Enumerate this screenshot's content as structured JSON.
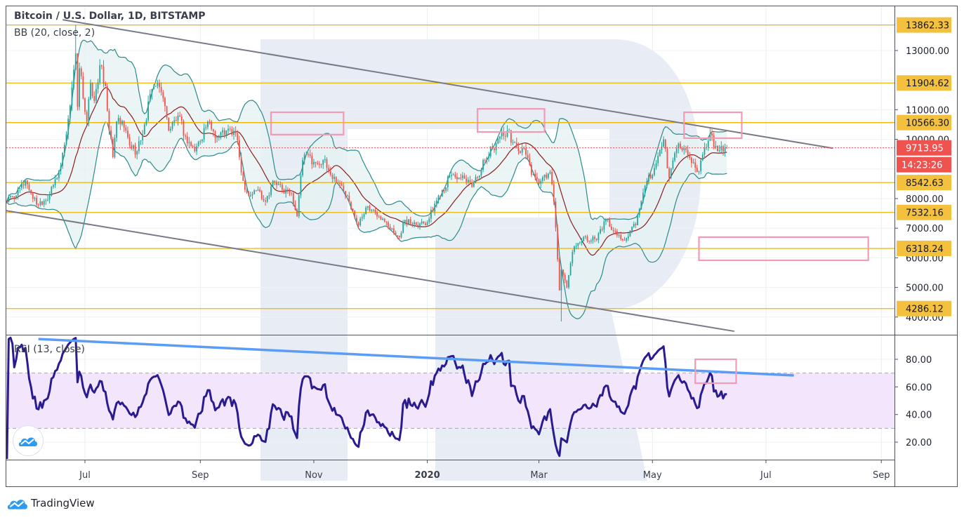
{
  "header": {
    "title": "Bitcoin / U.S. Dollar, 1D, BITSTAMP",
    "indicator": "BB (20, close, 2)"
  },
  "rsi_label": "RSI (13, close)",
  "brand": "TradingView",
  "colors": {
    "up": "#26a69a",
    "down": "#ef5350",
    "bb_line": "#2b8a8a",
    "bb_fill": "#e6f2f2",
    "bb_basis": "#8b1e1e",
    "level": "#f0b400",
    "level_label": "#f4c13f",
    "price_label": "#ef5350",
    "trendline": "#787b86",
    "rsi_line": "#2a1b8f",
    "rsi_band": "#f3e6fc",
    "rsi_trend": "#5b9cf6",
    "box": "#f19bb4",
    "watermark": "#e8edf5"
  },
  "chart_data": {
    "type": "candlestick",
    "title": "Bitcoin / U.S. Dollar, 1D, BITSTAMP",
    "close_keypoints": [
      [
        "2019-05-19",
        7900
      ],
      [
        "2019-05-25",
        8100
      ],
      [
        "2019-05-30",
        8600
      ],
      [
        "2019-06-05",
        7800
      ],
      [
        "2019-06-12",
        8100
      ],
      [
        "2019-06-18",
        9100
      ],
      [
        "2019-06-22",
        10700
      ],
      [
        "2019-06-26",
        12900
      ],
      [
        "2019-06-27",
        11100
      ],
      [
        "2019-06-28",
        12400
      ],
      [
        "2019-07-02",
        10600
      ],
      [
        "2019-07-04",
        11900
      ],
      [
        "2019-07-06",
        11300
      ],
      [
        "2019-07-09",
        12500
      ],
      [
        "2019-07-12",
        11800
      ],
      [
        "2019-07-14",
        10300
      ],
      [
        "2019-07-16",
        9400
      ],
      [
        "2019-07-18",
        10600
      ],
      [
        "2019-07-22",
        10400
      ],
      [
        "2019-07-25",
        9800
      ],
      [
        "2019-07-29",
        9600
      ],
      [
        "2019-08-02",
        10500
      ],
      [
        "2019-08-06",
        11700
      ],
      [
        "2019-08-09",
        11900
      ],
      [
        "2019-08-12",
        11400
      ],
      [
        "2019-08-15",
        10300
      ],
      [
        "2019-08-20",
        10800
      ],
      [
        "2019-08-24",
        10100
      ],
      [
        "2019-08-29",
        9600
      ],
      [
        "2019-09-05",
        10600
      ],
      [
        "2019-09-10",
        10100
      ],
      [
        "2019-09-15",
        10300
      ],
      [
        "2019-09-20",
        10200
      ],
      [
        "2019-09-24",
        8600
      ],
      [
        "2019-09-27",
        8100
      ],
      [
        "2019-10-02",
        8300
      ],
      [
        "2019-10-06",
        7900
      ],
      [
        "2019-10-10",
        8600
      ],
      [
        "2019-10-15",
        8300
      ],
      [
        "2019-10-20",
        8200
      ],
      [
        "2019-10-23",
        7400
      ],
      [
        "2019-10-26",
        9300
      ],
      [
        "2019-10-28",
        9500
      ],
      [
        "2019-11-02",
        9200
      ],
      [
        "2019-11-06",
        9300
      ],
      [
        "2019-11-10",
        8800
      ],
      [
        "2019-11-15",
        8500
      ],
      [
        "2019-11-19",
        8100
      ],
      [
        "2019-11-22",
        7600
      ],
      [
        "2019-11-25",
        7100
      ],
      [
        "2019-11-29",
        7700
      ],
      [
        "2019-12-05",
        7400
      ],
      [
        "2019-12-10",
        7200
      ],
      [
        "2019-12-17",
        6700
      ],
      [
        "2019-12-19",
        7200
      ],
      [
        "2019-12-25",
        7200
      ],
      [
        "2020-01-01",
        7200
      ],
      [
        "2020-01-07",
        8100
      ],
      [
        "2020-01-14",
        8800
      ],
      [
        "2020-01-19",
        8700
      ],
      [
        "2020-01-25",
        8400
      ],
      [
        "2020-02-01",
        9300
      ],
      [
        "2020-02-09",
        10100
      ],
      [
        "2020-02-13",
        10300
      ],
      [
        "2020-02-16",
        9900
      ],
      [
        "2020-02-19",
        9600
      ],
      [
        "2020-02-22",
        9700
      ],
      [
        "2020-02-26",
        8800
      ],
      [
        "2020-03-01",
        8500
      ],
      [
        "2020-03-07",
        8900
      ],
      [
        "2020-03-09",
        7900
      ],
      [
        "2020-03-12",
        4900
      ],
      [
        "2020-03-13",
        5600
      ],
      [
        "2020-03-16",
        5000
      ],
      [
        "2020-03-19",
        6200
      ],
      [
        "2020-03-25",
        6700
      ],
      [
        "2020-04-01",
        6600
      ],
      [
        "2020-04-06",
        7300
      ],
      [
        "2020-04-10",
        6900
      ],
      [
        "2020-04-15",
        6600
      ],
      [
        "2020-04-22",
        7100
      ],
      [
        "2020-04-29",
        8800
      ],
      [
        "2020-05-01",
        8800
      ],
      [
        "2020-05-07",
        10000
      ],
      [
        "2020-05-10",
        8700
      ],
      [
        "2020-05-14",
        9700
      ],
      [
        "2020-05-18",
        9700
      ],
      [
        "2020-05-25",
        8900
      ],
      [
        "2020-06-01",
        10200
      ],
      [
        "2020-06-05",
        9600
      ],
      [
        "2020-06-10",
        9714
      ]
    ],
    "extremes": {
      "high": {
        "date": "2019-06-26",
        "value": 13862.33
      },
      "low": {
        "date": "2020-03-13",
        "value": 3850
      }
    },
    "price_ticks": [
      "13000.00",
      "11000.00",
      "10000.00",
      "8000.00",
      "7000.00",
      "6000.00",
      "5000.00",
      "4000.00"
    ],
    "levels": [
      "13862.33",
      "11904.62",
      "10566.30",
      "8542.63",
      "7532.16",
      "6318.24",
      "4286.12"
    ],
    "last_price": "9713.95",
    "countdown": "14:23:26",
    "time_ticks": [
      {
        "label": "Jul",
        "date": "2019-07-01",
        "bold": false
      },
      {
        "label": "Sep",
        "date": "2019-09-01",
        "bold": false
      },
      {
        "label": "Nov",
        "date": "2019-11-01",
        "bold": false
      },
      {
        "label": "2020",
        "date": "2020-01-01",
        "bold": true
      },
      {
        "label": "Mar",
        "date": "2020-03-01",
        "bold": false
      },
      {
        "label": "May",
        "date": "2020-05-01",
        "bold": false
      },
      {
        "label": "Jul",
        "date": "2020-07-01",
        "bold": false
      },
      {
        "label": "Sep",
        "date": "2020-09-01",
        "bold": false
      }
    ],
    "trendlines": [
      {
        "name": "upper-channel",
        "from": [
          "2019-06-19",
          14040
        ],
        "to": [
          "2020-08-06",
          9700
        ]
      },
      {
        "name": "lower-channel",
        "from": [
          "2019-05-19",
          7600
        ],
        "to": [
          "2020-06-14",
          3520
        ]
      }
    ],
    "boxes": [
      {
        "from": "2019-10-09",
        "to": "2019-11-17",
        "top": 10915,
        "bottom": 10160
      },
      {
        "from": "2020-01-28",
        "to": "2020-03-04",
        "top": 11030,
        "bottom": 10250
      },
      {
        "from": "2020-05-18",
        "to": "2020-06-18",
        "top": 10915,
        "bottom": 10040
      },
      {
        "from": "2020-05-26",
        "to": "2020-08-25",
        "top": 6700,
        "bottom": 5915
      }
    ],
    "bollinger": {
      "period": 20,
      "mult": 2
    },
    "rsi": {
      "period": 13,
      "ticks": [
        "80.00",
        "60.00",
        "40.00",
        "20.00"
      ],
      "upper": 70,
      "lower": 30,
      "trendline": {
        "from": [
          "2019-06-06",
          94.7
        ],
        "to": [
          "2020-07-16",
          68.3
        ]
      },
      "box": {
        "from": "2020-05-24",
        "to": "2020-06-15",
        "top": 80,
        "bottom": 62.7
      }
    }
  }
}
